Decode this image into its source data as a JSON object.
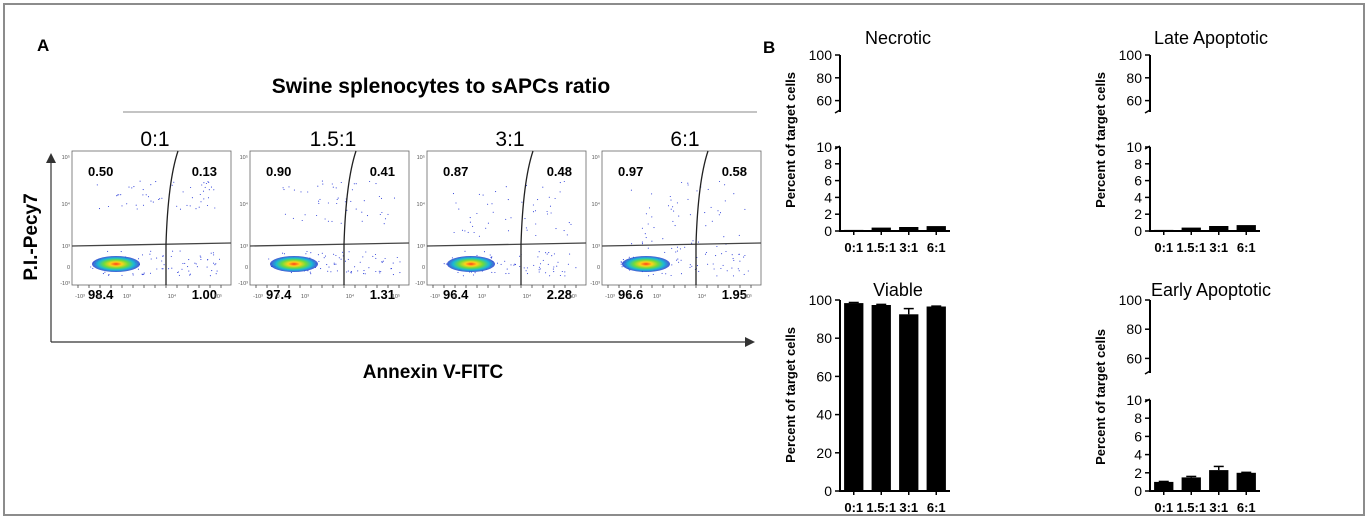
{
  "panel_a": {
    "label": "A",
    "header": "Swine splenocytes to sAPCs ratio",
    "y_axis_label": "P.I.-Pecy7",
    "x_axis_label": "Annexin V-FITC",
    "plots": [
      {
        "ratio": "0:1",
        "ul": "0.50",
        "ur": "0.13",
        "ll": "98.4",
        "lr": "1.00"
      },
      {
        "ratio": "1.5:1",
        "ul": "0.90",
        "ur": "0.41",
        "ll": "97.4",
        "lr": "1.31"
      },
      {
        "ratio": "3:1",
        "ul": "0.87",
        "ur": "0.48",
        "ll": "96.4",
        "lr": "2.28"
      },
      {
        "ratio": "6:1",
        "ul": "0.97",
        "ur": "0.58",
        "ll": "96.6",
        "lr": "1.95"
      }
    ],
    "y_tick_labels": [
      "10⁵",
      "10⁴",
      "10³",
      "0",
      "-10³"
    ],
    "x_tick_labels": [
      "-10³",
      "0",
      "10³",
      "10⁴",
      "10⁵"
    ]
  },
  "panel_b_label": "B",
  "chart_data": [
    {
      "type": "bar",
      "title": "Necrotic",
      "ylabel": "Percent of target cells",
      "categories": [
        "0:1",
        "1.5:1",
        "3:1",
        "6:1"
      ],
      "values": [
        0.13,
        0.41,
        0.48,
        0.58
      ],
      "errors": [
        0,
        0,
        0,
        0
      ],
      "broken_axis": true,
      "ylim_lower": [
        0,
        10
      ],
      "ylim_upper": [
        50,
        100
      ],
      "yticks_lower": [
        0,
        2,
        4,
        6,
        8,
        10
      ],
      "yticks_upper": [
        60,
        80,
        100
      ]
    },
    {
      "type": "bar",
      "title": "Late Apoptotic",
      "ylabel": "Percent of target cells",
      "categories": [
        "0:1",
        "1.5:1",
        "3:1",
        "6:1"
      ],
      "values": [
        0.13,
        0.41,
        0.6,
        0.7
      ],
      "errors": [
        0,
        0,
        0,
        0
      ],
      "broken_axis": true,
      "ylim_lower": [
        0,
        10
      ],
      "ylim_upper": [
        50,
        100
      ],
      "yticks_lower": [
        0,
        2,
        4,
        6,
        8,
        10
      ],
      "yticks_upper": [
        60,
        80,
        100
      ]
    },
    {
      "type": "bar",
      "title": "Viable",
      "ylabel": "Percent of target cells",
      "categories": [
        "0:1",
        "1.5:1",
        "3:1",
        "6:1"
      ],
      "values": [
        98.4,
        97.4,
        92.5,
        96.6
      ],
      "errors": [
        0.3,
        0.3,
        3,
        0.2
      ],
      "broken_axis": false,
      "ylim": [
        0,
        100
      ],
      "yticks": [
        0,
        20,
        40,
        60,
        80,
        100
      ]
    },
    {
      "type": "bar",
      "title": "Early Apoptotic",
      "ylabel": "Percent of target cells",
      "categories": [
        "0:1",
        "1.5:1",
        "3:1",
        "6:1"
      ],
      "values": [
        1.0,
        1.5,
        2.3,
        2.0
      ],
      "errors": [
        0.05,
        0.1,
        0.4,
        0.05
      ],
      "broken_axis": true,
      "ylim_lower": [
        0,
        10
      ],
      "ylim_upper": [
        50,
        100
      ],
      "yticks_lower": [
        0,
        2,
        4,
        6,
        8,
        10
      ],
      "yticks_upper": [
        60,
        80,
        100
      ]
    }
  ]
}
